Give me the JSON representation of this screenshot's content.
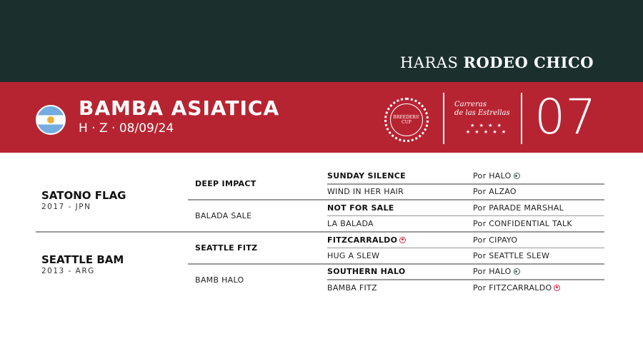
{
  "header": {
    "brand_light": "HARAS",
    "brand_bold": "RODEO CHICO"
  },
  "horse": {
    "name": "BAMBA ASIATICA",
    "details": "H · Z · 08/09/24",
    "lot": "07",
    "flag": "argentina-flag-icon"
  },
  "logos": {
    "seal": "INTERNATIONAL BREEDERS' CUP NOMINATED STALLION",
    "carreras": "Carreras de las Estrellas"
  },
  "colors": {
    "dark_green": "#1b302d",
    "red": "#b72431",
    "green_marker": "#3d5a55",
    "red_marker": "#d9283c"
  },
  "pedigree": {
    "sire": {
      "name": "SATONO FLAG",
      "info": "2017 - JPN"
    },
    "dam": {
      "name": "SEATTLE BAM",
      "info": "2013 - ARG"
    },
    "gen2": [
      "DEEP IMPACT",
      "BALADA SALE",
      "SEATTLE FITZ",
      "BAMB HALO"
    ],
    "gen3": [
      {
        "name": "SUNDAY SILENCE",
        "bold": true,
        "sire": "Por HALO",
        "marker": "green"
      },
      {
        "name": "WIND IN HER HAIR",
        "bold": false,
        "sire": "Por ALZAO"
      },
      {
        "name": "NOT FOR SALE",
        "bold": true,
        "sire": "Por PARADE MARSHAL"
      },
      {
        "name": "LA BALADA",
        "bold": false,
        "sire": "Por CONFIDENTIAL TALK"
      },
      {
        "name": "FITZCARRALDO",
        "bold": true,
        "sire": "Por CIPAYO",
        "name_marker": "red"
      },
      {
        "name": "HUG A SLEW",
        "bold": false,
        "sire": "Por SEATTLE SLEW"
      },
      {
        "name": "SOUTHERN HALO",
        "bold": true,
        "sire": "Por HALO",
        "marker": "green"
      },
      {
        "name": "BAMBA FITZ",
        "bold": false,
        "sire": "Por FITZCARRALDO",
        "marker": "red"
      }
    ]
  }
}
